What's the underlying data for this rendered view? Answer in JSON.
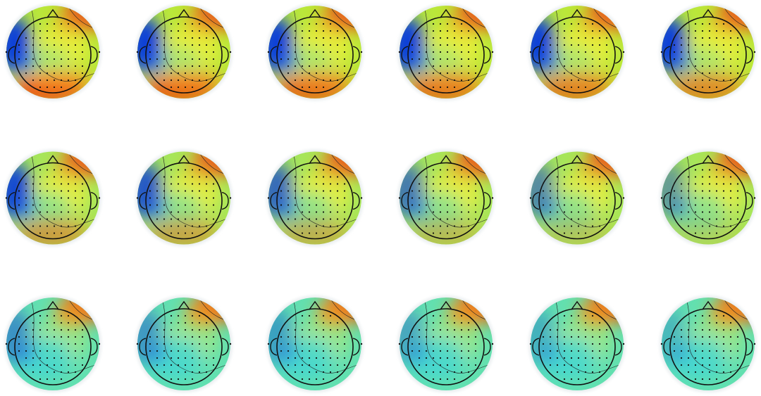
{
  "layout": {
    "rows": 3,
    "columns": 6
  }
}
